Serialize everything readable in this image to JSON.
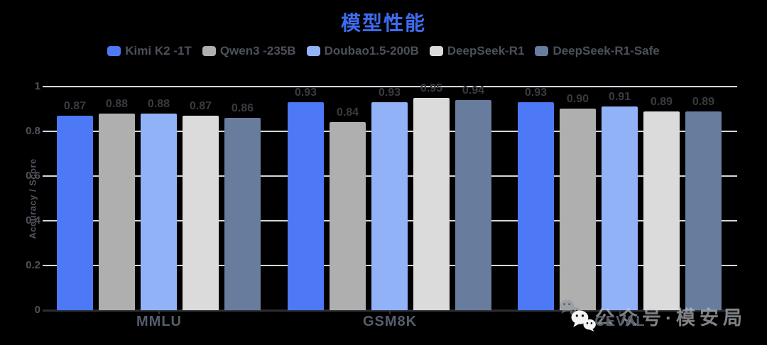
{
  "page": {
    "background": "#000000"
  },
  "chart_data": {
    "type": "bar",
    "title": "模型性能",
    "title_color": "#3e6cf0",
    "ylabel": "Accuracy / Score",
    "ylim": [
      0,
      1
    ],
    "yticks": [
      "0",
      "0.2",
      "0.4",
      "0.6",
      "0.8",
      "1"
    ],
    "grid": true,
    "legend_position": "top",
    "value_labels": true,
    "categories": [
      "MMLU",
      "GSM8K",
      "CEVAL"
    ],
    "series": [
      {
        "name": "Kimi K2 -1T",
        "color": "#4d78f6",
        "values": [
          0.87,
          0.93,
          0.93
        ]
      },
      {
        "name": "Qwen3 -235B",
        "color": "#afafaf",
        "values": [
          0.88,
          0.84,
          0.9
        ]
      },
      {
        "name": "Doubao1.5-200B",
        "color": "#92b2f8",
        "values": [
          0.88,
          0.93,
          0.91
        ]
      },
      {
        "name": "DeepSeek-R1",
        "color": "#dbdbdc",
        "values": [
          0.87,
          0.95,
          0.89
        ]
      },
      {
        "name": "DeepSeek-R1-Safe",
        "color": "#687c9e",
        "values": [
          0.86,
          0.94,
          0.89
        ]
      }
    ],
    "colors": {
      "grid": "#d3d6db",
      "axis_baseline": "#2c2d31",
      "value_label": "#383b40",
      "tick_label": "#4e525b",
      "category_label": "#565d6c",
      "legend_text": "#4c5058"
    }
  },
  "watermark": {
    "text": "公众号·模安局",
    "icon": "wechat-icon"
  }
}
